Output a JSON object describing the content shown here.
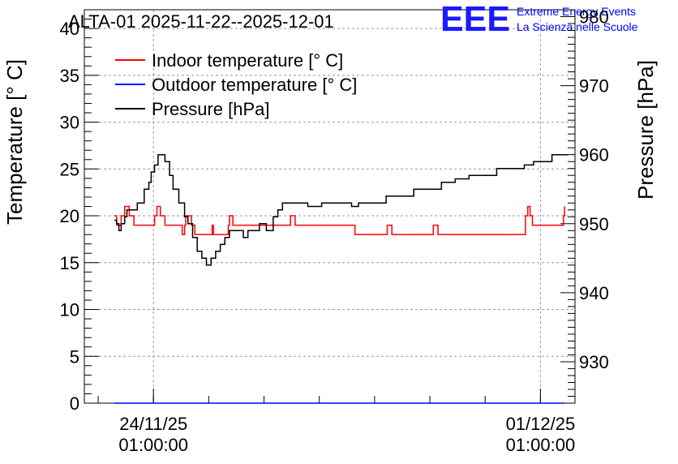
{
  "header": {
    "title": "ALTA-01 2025-11-22--2025-12-01",
    "logo_text": "EEE",
    "logo_line1": "Extreme Energy Events",
    "logo_line2": "La Scienza nelle Scuole"
  },
  "chart_data": {
    "type": "line",
    "title": "ALTA-01 2025-11-22--2025-12-01",
    "ylabel": "Temperature [° C]",
    "y2label": "Pressure [hPa]",
    "ylim": [
      0,
      42
    ],
    "y2lim": [
      924,
      981
    ],
    "yticks": [
      0,
      5,
      10,
      15,
      20,
      25,
      30,
      35,
      40
    ],
    "y2ticks": [
      930,
      940,
      950,
      960,
      970,
      980
    ],
    "xlim": [
      "2025-11-22 19:00",
      "2025-12-01 16:00"
    ],
    "xtick_labels": [
      {
        "date": "24/11/25",
        "time": "01:00:00",
        "at": "2025-11-24 01:00"
      },
      {
        "date": "01/12/25",
        "time": "01:00:00",
        "at": "2025-12-01 01:00"
      }
    ],
    "grid": true,
    "legend_position": "top-left",
    "series": [
      {
        "name": "Indoor temperature [° C]",
        "color": "#ff0000",
        "axis": "left",
        "points": [
          [
            "2025-11-23 08:00",
            20.0
          ],
          [
            "2025-11-23 09:00",
            19.0
          ],
          [
            "2025-11-23 10:00",
            19.0
          ],
          [
            "2025-11-23 11:00",
            20.0
          ],
          [
            "2025-11-23 12:00",
            20.0
          ],
          [
            "2025-11-23 12:30",
            21.0
          ],
          [
            "2025-11-23 14:00",
            21.0
          ],
          [
            "2025-11-23 14:30",
            20.0
          ],
          [
            "2025-11-23 16:00",
            20.0
          ],
          [
            "2025-11-23 16:30",
            19.0
          ],
          [
            "2025-11-24 01:00",
            19.0
          ],
          [
            "2025-11-24 01:30",
            20.0
          ],
          [
            "2025-11-24 02:30",
            21.0
          ],
          [
            "2025-11-24 04:00",
            20.0
          ],
          [
            "2025-11-24 05:00",
            20.0
          ],
          [
            "2025-11-24 06:00",
            19.0
          ],
          [
            "2025-11-24 13:00",
            19.0
          ],
          [
            "2025-11-24 13:30",
            18.0
          ],
          [
            "2025-11-24 14:30",
            19.0
          ],
          [
            "2025-11-24 15:00",
            20.0
          ],
          [
            "2025-11-24 17:00",
            20.0
          ],
          [
            "2025-11-24 17:30",
            19.0
          ],
          [
            "2025-11-24 18:30",
            19.0
          ],
          [
            "2025-11-24 19:00",
            18.0
          ],
          [
            "2025-11-25 02:00",
            18.0
          ],
          [
            "2025-11-25 02:30",
            19.0
          ],
          [
            "2025-11-25 03:00",
            18.0
          ],
          [
            "2025-11-25 09:00",
            18.0
          ],
          [
            "2025-11-25 09:30",
            19.0
          ],
          [
            "2025-11-25 10:00",
            20.0
          ],
          [
            "2025-11-25 11:00",
            20.0
          ],
          [
            "2025-11-25 11:30",
            19.0
          ],
          [
            "2025-11-26 12:00",
            19.0
          ],
          [
            "2025-11-26 12:30",
            20.0
          ],
          [
            "2025-11-26 14:00",
            20.0
          ],
          [
            "2025-11-26 14:30",
            19.0
          ],
          [
            "2025-11-27 16:00",
            19.0
          ],
          [
            "2025-11-27 16:30",
            18.0
          ],
          [
            "2025-11-28 06:00",
            18.0
          ],
          [
            "2025-11-28 06:30",
            19.0
          ],
          [
            "2025-11-28 08:00",
            19.0
          ],
          [
            "2025-11-28 08:30",
            18.0
          ],
          [
            "2025-11-29 02:00",
            18.0
          ],
          [
            "2025-11-29 02:30",
            19.0
          ],
          [
            "2025-11-29 04:00",
            19.0
          ],
          [
            "2025-11-29 04:30",
            18.0
          ],
          [
            "2025-11-30 18:00",
            18.0
          ],
          [
            "2025-11-30 18:30",
            20.0
          ],
          [
            "2025-11-30 19:30",
            21.0
          ],
          [
            "2025-11-30 20:30",
            20.0
          ],
          [
            "2025-11-30 21:30",
            19.0
          ],
          [
            "2025-12-01 10:00",
            19.0
          ],
          [
            "2025-12-01 11:00",
            20.0
          ],
          [
            "2025-12-01 11:30",
            21.0
          ]
        ]
      },
      {
        "name": "Outdoor temperature [° C]",
        "color": "#0000ff",
        "axis": "left",
        "points": [
          [
            "2025-11-23 08:00",
            0.0
          ],
          [
            "2025-12-01 11:30",
            0.0
          ]
        ]
      },
      {
        "name": "Pressure [hPa]",
        "color": "#000000",
        "axis": "right",
        "points": [
          [
            "2025-11-23 08:00",
            950.5
          ],
          [
            "2025-11-23 09:00",
            950.0
          ],
          [
            "2025-11-23 10:00",
            949.0
          ],
          [
            "2025-11-23 11:00",
            950.0
          ],
          [
            "2025-11-23 12:30",
            951.0
          ],
          [
            "2025-11-23 13:30",
            952.0
          ],
          [
            "2025-11-23 16:00",
            952.0
          ],
          [
            "2025-11-23 18:00",
            953.0
          ],
          [
            "2025-11-23 21:00",
            955.0
          ],
          [
            "2025-11-23 23:00",
            956.0
          ],
          [
            "2025-11-24 00:00",
            957.5
          ],
          [
            "2025-11-24 01:30",
            958.5
          ],
          [
            "2025-11-24 03:00",
            960.0
          ],
          [
            "2025-11-24 05:00",
            960.0
          ],
          [
            "2025-11-24 06:00",
            959.0
          ],
          [
            "2025-11-24 08:00",
            957.0
          ],
          [
            "2025-11-24 09:30",
            955.0
          ],
          [
            "2025-11-24 12:00",
            953.0
          ],
          [
            "2025-11-24 14:30",
            951.0
          ],
          [
            "2025-11-24 16:00",
            950.0
          ],
          [
            "2025-11-24 18:00",
            948.0
          ],
          [
            "2025-11-24 20:00",
            946.0
          ],
          [
            "2025-11-24 22:00",
            945.0
          ],
          [
            "2025-11-25 00:00",
            944.0
          ],
          [
            "2025-11-25 02:00",
            945.0
          ],
          [
            "2025-11-25 04:00",
            946.0
          ],
          [
            "2025-11-25 06:00",
            947.0
          ],
          [
            "2025-11-25 08:00",
            948.0
          ],
          [
            "2025-11-25 10:00",
            949.0
          ],
          [
            "2025-11-25 14:00",
            949.0
          ],
          [
            "2025-11-25 16:00",
            948.0
          ],
          [
            "2025-11-25 18:00",
            949.0
          ],
          [
            "2025-11-25 21:00",
            949.0
          ],
          [
            "2025-11-25 23:00",
            950.0
          ],
          [
            "2025-11-26 02:00",
            949.0
          ],
          [
            "2025-11-26 05:00",
            951.0
          ],
          [
            "2025-11-26 07:00",
            952.0
          ],
          [
            "2025-11-26 09:00",
            953.0
          ],
          [
            "2025-11-26 18:00",
            953.0
          ],
          [
            "2025-11-26 20:00",
            952.5
          ],
          [
            "2025-11-27 02:00",
            953.0
          ],
          [
            "2025-11-27 12:00",
            953.0
          ],
          [
            "2025-11-27 15:00",
            952.5
          ],
          [
            "2025-11-27 18:00",
            953.0
          ],
          [
            "2025-11-28 02:00",
            953.0
          ],
          [
            "2025-11-28 06:00",
            954.0
          ],
          [
            "2025-11-28 12:00",
            954.0
          ],
          [
            "2025-11-28 18:00",
            955.0
          ],
          [
            "2025-11-29 02:00",
            955.0
          ],
          [
            "2025-11-29 06:00",
            956.0
          ],
          [
            "2025-11-29 12:00",
            956.5
          ],
          [
            "2025-11-29 18:00",
            957.0
          ],
          [
            "2025-11-30 00:00",
            957.0
          ],
          [
            "2025-11-30 06:00",
            958.0
          ],
          [
            "2025-11-30 12:00",
            958.0
          ],
          [
            "2025-11-30 18:00",
            958.5
          ],
          [
            "2025-11-30 22:00",
            959.0
          ],
          [
            "2025-12-01 02:00",
            959.0
          ],
          [
            "2025-12-01 06:00",
            960.0
          ],
          [
            "2025-12-01 09:00",
            960.0
          ],
          [
            "2025-12-01 13:00",
            960.0
          ]
        ]
      }
    ]
  }
}
